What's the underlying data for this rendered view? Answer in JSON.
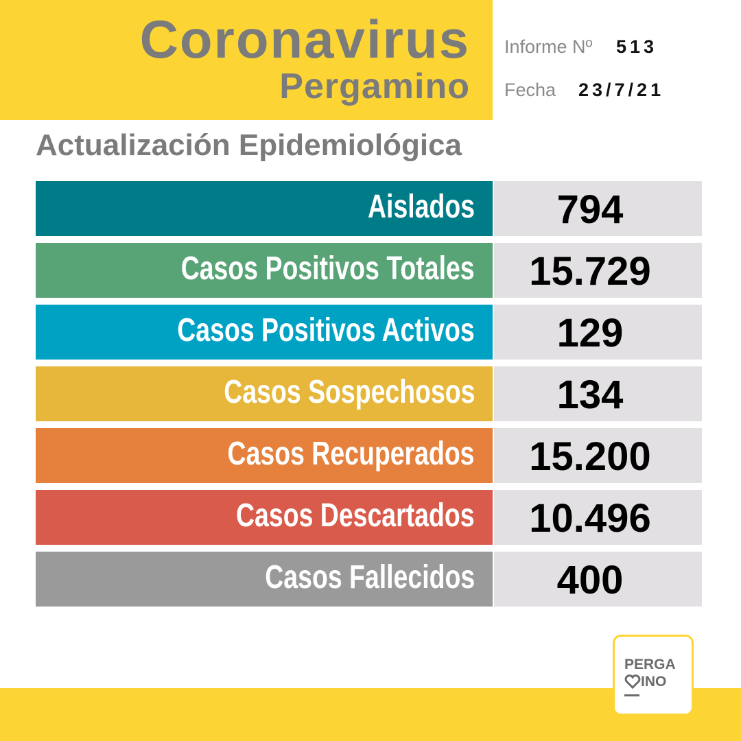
{
  "header": {
    "title": "Coronavirus",
    "subtitle": "Pergamino",
    "report_label": "Informe Nº",
    "report_number": "513",
    "date_label": "Fecha",
    "date": "23/7/21"
  },
  "section_title": "Actualización Epidemiológica",
  "rows": [
    {
      "label": "Aislados",
      "value": "794"
    },
    {
      "label": "Casos Positivos Totales",
      "value": "15.729"
    },
    {
      "label": "Casos Positivos Activos",
      "value": "129"
    },
    {
      "label": "Casos Sospechosos",
      "value": "134"
    },
    {
      "label": "Casos Recuperados",
      "value": "15.200"
    },
    {
      "label": "Casos Descartados",
      "value": "10.496"
    },
    {
      "label": "Casos Fallecidos",
      "value": "400"
    }
  ],
  "logo": {
    "line1": "PERGA",
    "line2": "INO"
  }
}
